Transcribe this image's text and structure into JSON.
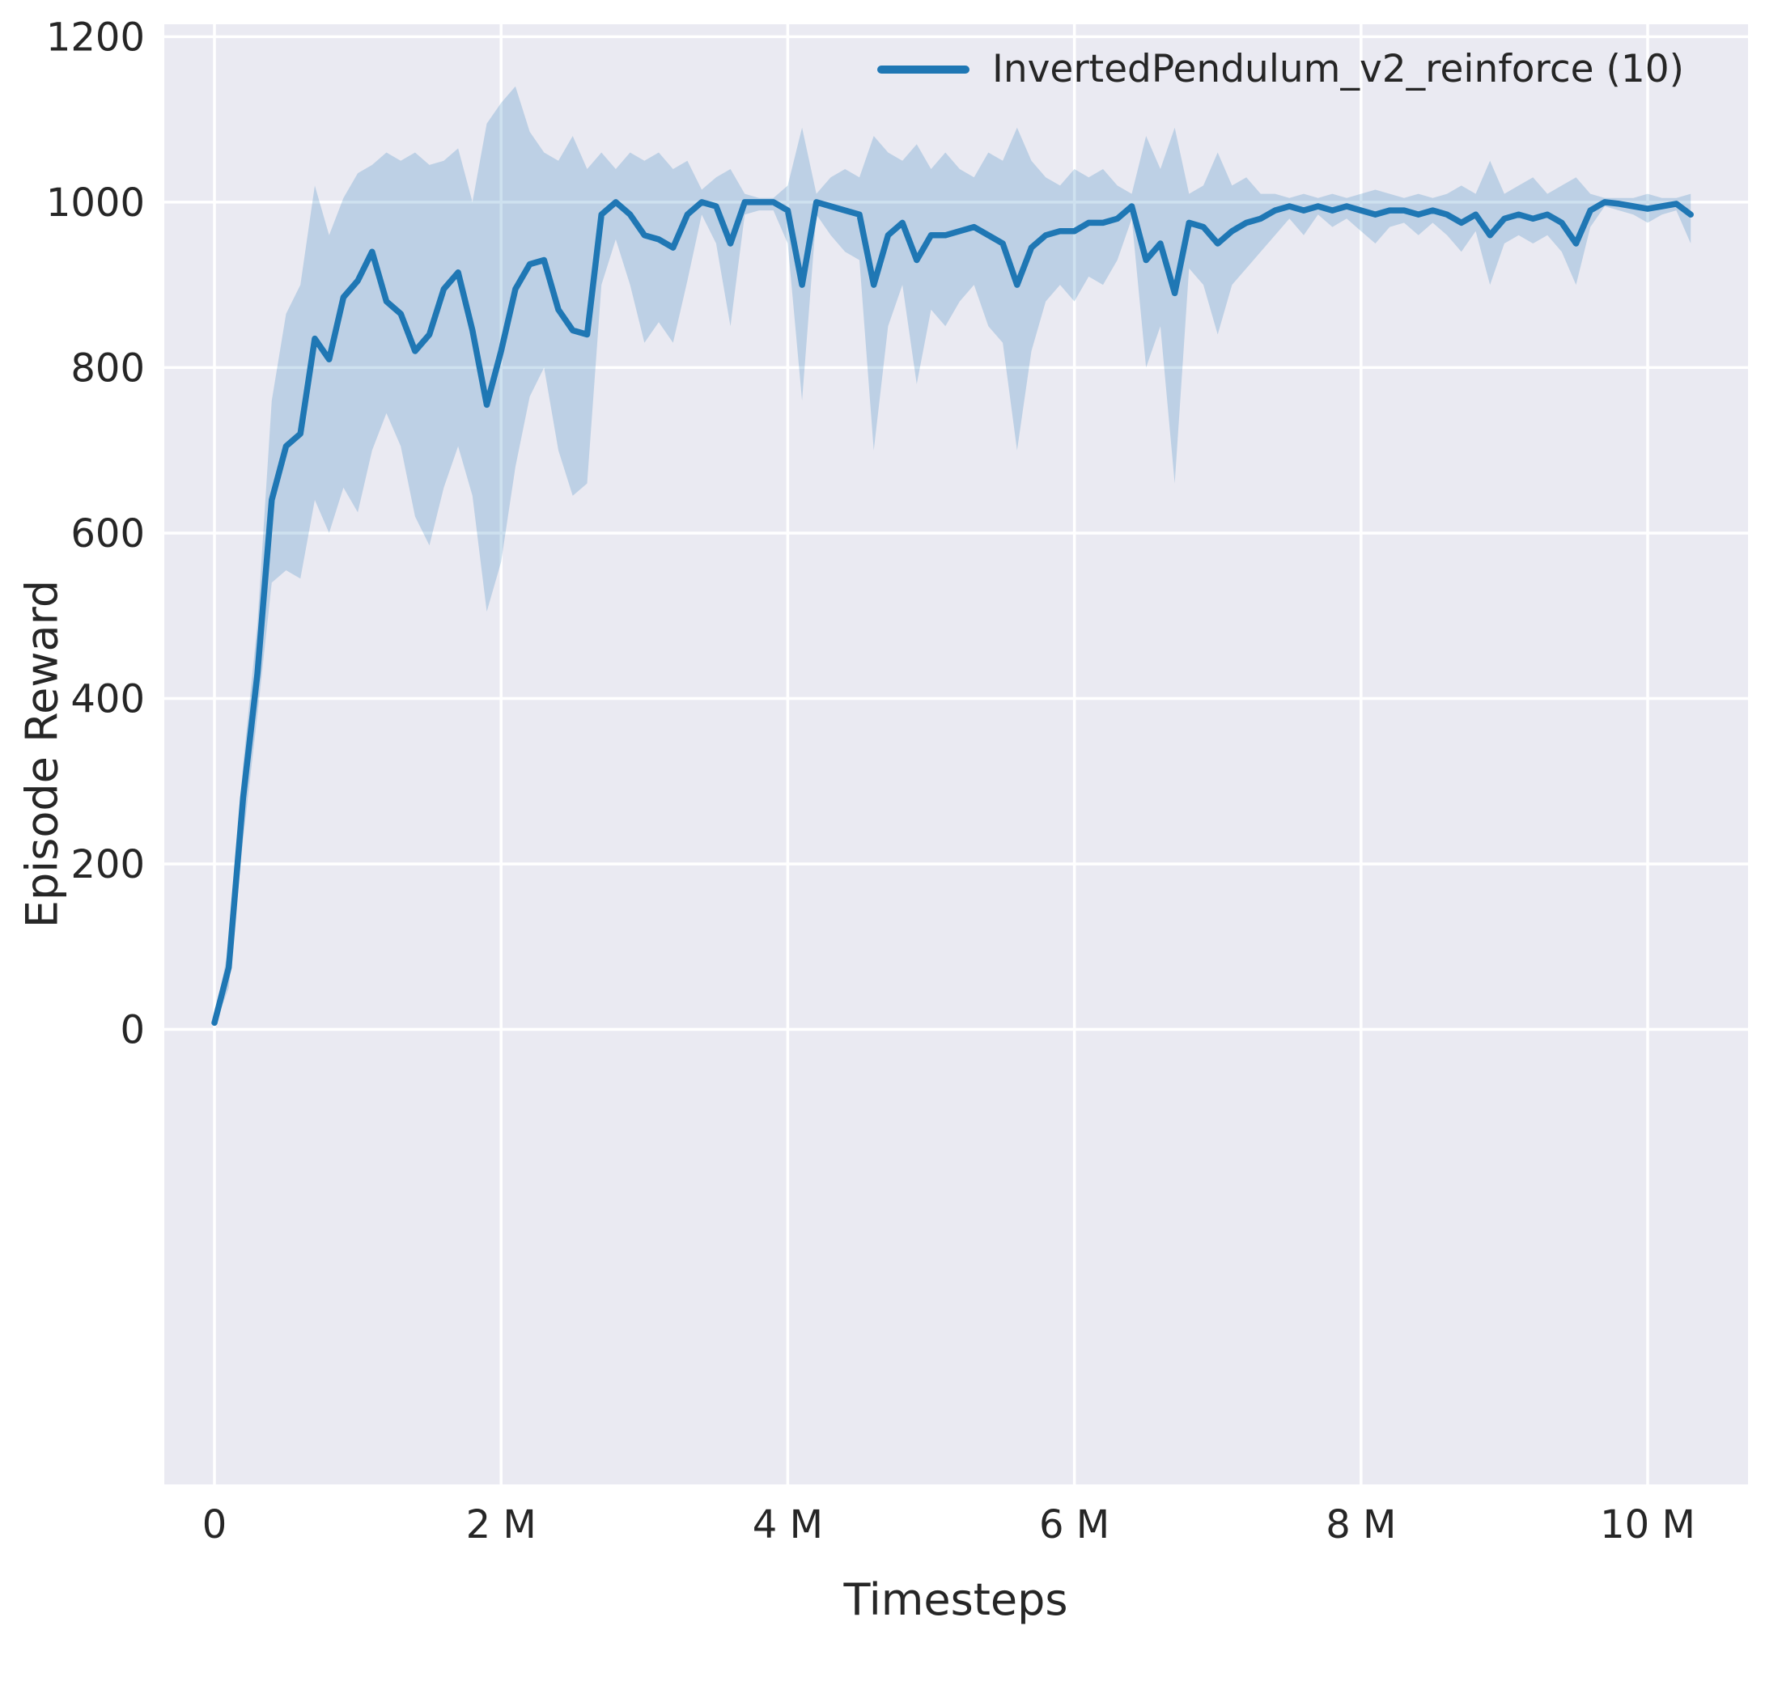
{
  "figure": {
    "background": "#ffffff",
    "plot_background": "#eaeaf2",
    "grid_color": "#ffffff",
    "text_color": "#262626",
    "line_color": "#1f77b4",
    "band_opacity": 0.22
  },
  "legend": {
    "label": "InvertedPendulum_v2_reinforce (10)"
  },
  "chart_data": {
    "type": "line",
    "title": "",
    "xlabel": "Timesteps",
    "ylabel": "Episode Reward",
    "x_unit": "millions_of_timesteps",
    "xlim": [
      -0.35,
      10.7
    ],
    "ylim": [
      -550,
      1215
    ],
    "grid": true,
    "legend_position": "upper right",
    "x_ticks": [
      0,
      2,
      4,
      6,
      8,
      10
    ],
    "x_tick_labels": [
      "0",
      "2 M",
      "4 M",
      "6 M",
      "8 M",
      "10 M"
    ],
    "y_ticks": [
      0,
      200,
      400,
      600,
      800,
      1000,
      1200
    ],
    "y_tick_labels": [
      "0",
      "200",
      "400",
      "600",
      "800",
      "1000",
      "1200"
    ],
    "series": [
      {
        "name": "InvertedPendulum_v2_reinforce (10)",
        "x": [
          0,
          0.1,
          0.2,
          0.3,
          0.4,
          0.5,
          0.6,
          0.7,
          0.8,
          0.9,
          1,
          1.1,
          1.2,
          1.3,
          1.4,
          1.5,
          1.6,
          1.7,
          1.8,
          1.9,
          2,
          2.1,
          2.2,
          2.3,
          2.4,
          2.5,
          2.6,
          2.7,
          2.8,
          2.9,
          3,
          3.1,
          3.2,
          3.3,
          3.4,
          3.5,
          3.6,
          3.7,
          3.8,
          3.9,
          4,
          4.1,
          4.2,
          4.3,
          4.4,
          4.5,
          4.6,
          4.7,
          4.8,
          4.9,
          5,
          5.1,
          5.2,
          5.3,
          5.4,
          5.5,
          5.6,
          5.7,
          5.8,
          5.9,
          6,
          6.1,
          6.2,
          6.3,
          6.4,
          6.5,
          6.6,
          6.7,
          6.8,
          6.9,
          7,
          7.1,
          7.2,
          7.3,
          7.4,
          7.5,
          7.6,
          7.7,
          7.8,
          7.9,
          8,
          8.1,
          8.2,
          8.3,
          8.4,
          8.5,
          8.6,
          8.7,
          8.8,
          8.9,
          9,
          9.1,
          9.2,
          9.3,
          9.4,
          9.5,
          9.6,
          9.7,
          9.8,
          9.9,
          10,
          10.1,
          10.2,
          10.3
        ],
        "mean": [
          8,
          75,
          280,
          430,
          640,
          705,
          720,
          835,
          810,
          885,
          905,
          940,
          880,
          865,
          820,
          840,
          895,
          915,
          845,
          755,
          820,
          895,
          925,
          930,
          870,
          845,
          840,
          985,
          1000,
          985,
          960,
          955,
          945,
          985,
          1000,
          995,
          950,
          1000,
          1000,
          1000,
          990,
          900,
          1000,
          995,
          990,
          985,
          900,
          960,
          975,
          930,
          960,
          960,
          965,
          970,
          960,
          950,
          900,
          945,
          960,
          965,
          965,
          975,
          975,
          980,
          995,
          930,
          950,
          890,
          975,
          970,
          950,
          965,
          975,
          980,
          990,
          995,
          990,
          995,
          990,
          995,
          990,
          985,
          990,
          990,
          985,
          990,
          985,
          975,
          985,
          960,
          980,
          985,
          980,
          985,
          975,
          950,
          990,
          1000,
          998,
          995,
          992,
          995,
          998,
          985
        ],
        "band_low": [
          4,
          50,
          230,
          380,
          540,
          555,
          545,
          640,
          600,
          655,
          625,
          700,
          745,
          705,
          620,
          585,
          655,
          705,
          645,
          505,
          565,
          680,
          765,
          800,
          700,
          645,
          660,
          900,
          955,
          900,
          830,
          855,
          830,
          905,
          985,
          950,
          850,
          985,
          990,
          990,
          950,
          760,
          985,
          960,
          940,
          930,
          700,
          850,
          900,
          780,
          870,
          850,
          880,
          900,
          850,
          830,
          700,
          820,
          880,
          900,
          880,
          910,
          900,
          930,
          980,
          800,
          850,
          660,
          920,
          900,
          840,
          900,
          920,
          940,
          960,
          980,
          960,
          985,
          970,
          980,
          965,
          950,
          970,
          975,
          960,
          975,
          960,
          940,
          965,
          900,
          950,
          960,
          950,
          960,
          940,
          900,
          970,
          995,
          990,
          985,
          975,
          985,
          990,
          950
        ],
        "band_high": [
          14,
          100,
          320,
          490,
          760,
          865,
          900,
          1020,
          960,
          1005,
          1035,
          1045,
          1060,
          1050,
          1060,
          1045,
          1050,
          1065,
          1000,
          1095,
          1120,
          1140,
          1085,
          1060,
          1050,
          1080,
          1040,
          1060,
          1040,
          1060,
          1050,
          1060,
          1040,
          1050,
          1015,
          1030,
          1040,
          1010,
          1005,
          1005,
          1020,
          1090,
          1010,
          1030,
          1040,
          1030,
          1080,
          1060,
          1050,
          1070,
          1040,
          1060,
          1040,
          1030,
          1060,
          1050,
          1090,
          1050,
          1030,
          1020,
          1040,
          1030,
          1040,
          1020,
          1010,
          1080,
          1040,
          1090,
          1010,
          1020,
          1060,
          1020,
          1030,
          1010,
          1010,
          1005,
          1010,
          1005,
          1010,
          1005,
          1010,
          1015,
          1010,
          1005,
          1010,
          1005,
          1010,
          1020,
          1010,
          1050,
          1010,
          1020,
          1030,
          1010,
          1020,
          1030,
          1010,
          1005,
          1005,
          1005,
          1010,
          1005,
          1005,
          1010
        ]
      }
    ]
  }
}
